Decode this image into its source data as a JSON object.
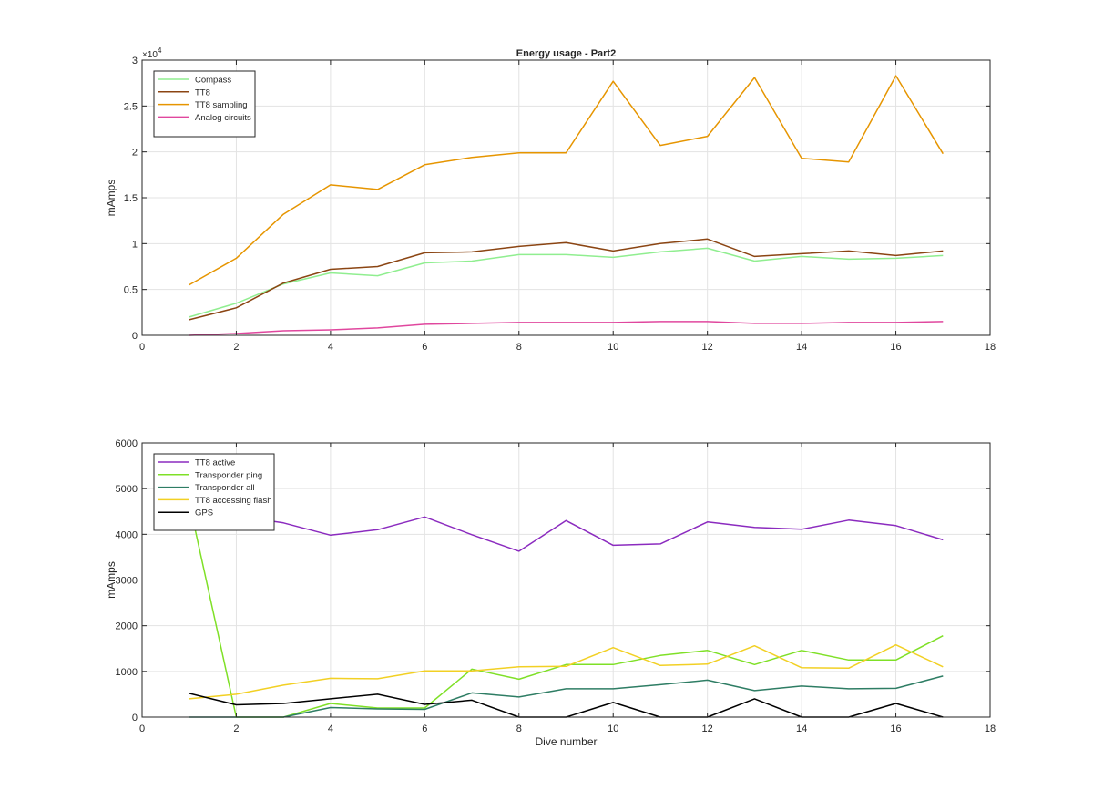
{
  "chart_data": [
    {
      "type": "line",
      "title": "Energy usage - Part2",
      "xlabel": "",
      "ylabel": "mAmps",
      "y_exponent_label": "×10",
      "y_exponent": "4",
      "xlim": [
        0,
        18
      ],
      "ylim": [
        0,
        30000
      ],
      "xticks": [
        0,
        2,
        4,
        6,
        8,
        10,
        12,
        14,
        16,
        18
      ],
      "yticks": [
        0,
        5000,
        10000,
        15000,
        20000,
        25000,
        30000
      ],
      "ytick_labels": [
        "0",
        "0.5",
        "1",
        "1.5",
        "2",
        "2.5",
        "3"
      ],
      "grid": true,
      "legend_position": "top-left",
      "x": [
        1,
        2,
        3,
        4,
        5,
        6,
        7,
        8,
        9,
        10,
        11,
        12,
        13,
        14,
        15,
        16,
        17
      ],
      "series": [
        {
          "name": "Compass",
          "color": "#90EE90",
          "values": [
            2000,
            3500,
            5600,
            6800,
            6500,
            7900,
            8100,
            8800,
            8800,
            8500,
            9100,
            9500,
            8100,
            8600,
            8300,
            8400,
            8700
          ]
        },
        {
          "name": "TT8",
          "color": "#8B4513",
          "values": [
            1700,
            3000,
            5700,
            7200,
            7500,
            9000,
            9100,
            9700,
            10100,
            9200,
            10000,
            10500,
            8600,
            8900,
            9200,
            8700,
            9200
          ]
        },
        {
          "name": "TT8 sampling",
          "color": "#E69500",
          "values": [
            5500,
            8400,
            13200,
            16400,
            15900,
            18600,
            19400,
            19900,
            19900,
            27700,
            20700,
            21700,
            28100,
            19300,
            18900,
            28300,
            19800
          ]
        },
        {
          "name": "Analog circuits",
          "color": "#E0479E",
          "values": [
            0,
            200,
            500,
            600,
            800,
            1200,
            1300,
            1400,
            1400,
            1400,
            1500,
            1500,
            1300,
            1300,
            1400,
            1400,
            1500
          ]
        }
      ]
    },
    {
      "type": "line",
      "title": "",
      "xlabel": "Dive number",
      "ylabel": "mAmps",
      "xlim": [
        0,
        18
      ],
      "ylim": [
        0,
        6000
      ],
      "xticks": [
        0,
        2,
        4,
        6,
        8,
        10,
        12,
        14,
        16,
        18
      ],
      "yticks": [
        0,
        1000,
        2000,
        3000,
        4000,
        5000,
        6000
      ],
      "ytick_labels": [
        "0",
        "1000",
        "2000",
        "3000",
        "4000",
        "5000",
        "6000"
      ],
      "grid": true,
      "legend_position": "top-left",
      "x": [
        1,
        2,
        3,
        4,
        5,
        6,
        7,
        8,
        9,
        10,
        11,
        12,
        13,
        14,
        15,
        16,
        17
      ],
      "series": [
        {
          "name": "TT8 active",
          "color": "#8B2BBF",
          "values": [
            4700,
            4400,
            4250,
            3980,
            4100,
            4380,
            3990,
            3630,
            4300,
            3760,
            3790,
            4270,
            4150,
            4110,
            4310,
            4190,
            3880
          ]
        },
        {
          "name": "Transponder ping",
          "color": "#7FE027",
          "values": [
            4700,
            0,
            0,
            300,
            200,
            200,
            1050,
            830,
            1150,
            1150,
            1350,
            1460,
            1150,
            1460,
            1250,
            1250,
            1780
          ]
        },
        {
          "name": "Transponder all",
          "color": "#2E7D64",
          "values": [
            0,
            0,
            0,
            210,
            180,
            170,
            530,
            440,
            620,
            620,
            710,
            810,
            580,
            680,
            620,
            630,
            900
          ]
        },
        {
          "name": "TT8 accessing flash",
          "color": "#F2D024",
          "values": [
            400,
            500,
            700,
            850,
            840,
            1010,
            1010,
            1100,
            1110,
            1520,
            1130,
            1160,
            1560,
            1080,
            1070,
            1580,
            1100
          ]
        },
        {
          "name": "GPS",
          "color": "#000000",
          "values": [
            520,
            270,
            300,
            400,
            500,
            280,
            370,
            0,
            0,
            320,
            0,
            0,
            400,
            0,
            0,
            300,
            0
          ]
        }
      ]
    }
  ]
}
